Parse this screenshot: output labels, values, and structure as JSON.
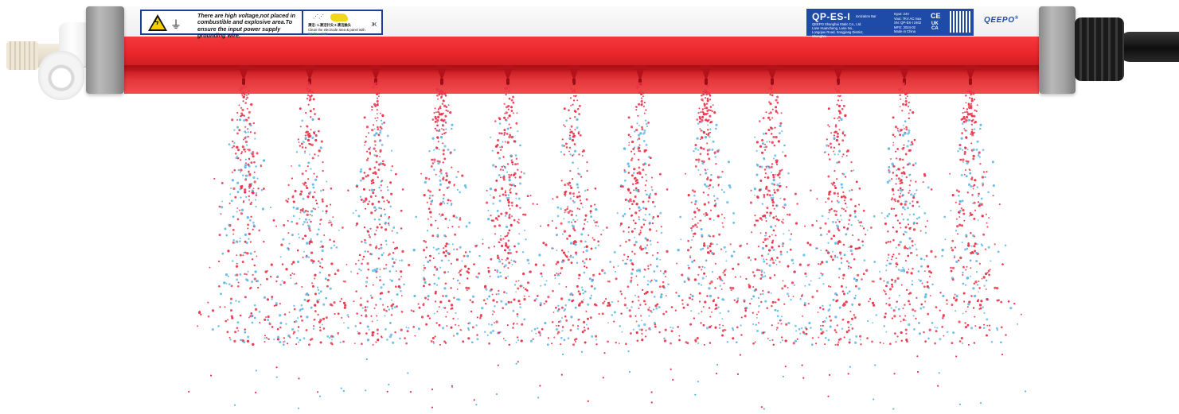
{
  "product": {
    "warning_label": "There are high voltage,not placed in\ncombustible and explosive area.To\nensure the input power supply\ngrounding wire.",
    "cleaning_label": {
      "heading": "清洁: 1.清洁针尖 2.清洁触头",
      "text": "Clean the electrode area & panel with",
      "text_green": "lint-free cloth"
    },
    "model_label": {
      "model": "QP-ES-I",
      "subtitle": "Ionization Bar",
      "manufacturer": "QEEPO Shanghai Static Co., Ltd.",
      "address": "Lane Huancheng, Lane No., Longqiao Road, Songjiang District, Shanghai",
      "specs": [
        "Input: 24V",
        "Vout: 7KV AC max",
        "SN: QP-ES-I 2402",
        "MFG: 2024-02",
        "Made in China"
      ],
      "ce_mark": "CE",
      "ukca_mark": "UK\nCA"
    },
    "brand": "QEEPO",
    "brand_mark": "®",
    "nozzle_count": 12
  },
  "colors": {
    "bar_red": "#e9262b",
    "ion_positive": "#e8334a",
    "ion_negative": "#5fb8e8",
    "label_blue": "#1e4aa8"
  }
}
